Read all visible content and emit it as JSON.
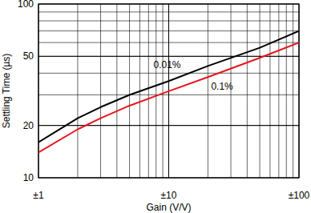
{
  "chart_data": {
    "type": "line",
    "x_label": "Gain (V/V)",
    "y_label": "Settling Time (µs)",
    "log": true,
    "grid": true,
    "xlim": [
      1,
      100
    ],
    "ylim": [
      10,
      100
    ],
    "xticks": [
      {
        "value": 1,
        "label": "±1"
      },
      {
        "value": 10,
        "label": "±10"
      },
      {
        "value": 100,
        "label": "±100"
      }
    ],
    "yticks": [
      10,
      20,
      50,
      100
    ],
    "x": [
      1,
      2,
      3,
      5,
      10,
      20,
      50,
      100
    ],
    "series": [
      {
        "name": "0.01%",
        "color": "#000000",
        "values": [
          16,
          22,
          25.5,
          30,
          36,
          44,
          56,
          70
        ]
      },
      {
        "name": "0.1%",
        "color": "#e8141c",
        "values": [
          14,
          19,
          22,
          26,
          31.5,
          38,
          49,
          60
        ]
      }
    ]
  }
}
